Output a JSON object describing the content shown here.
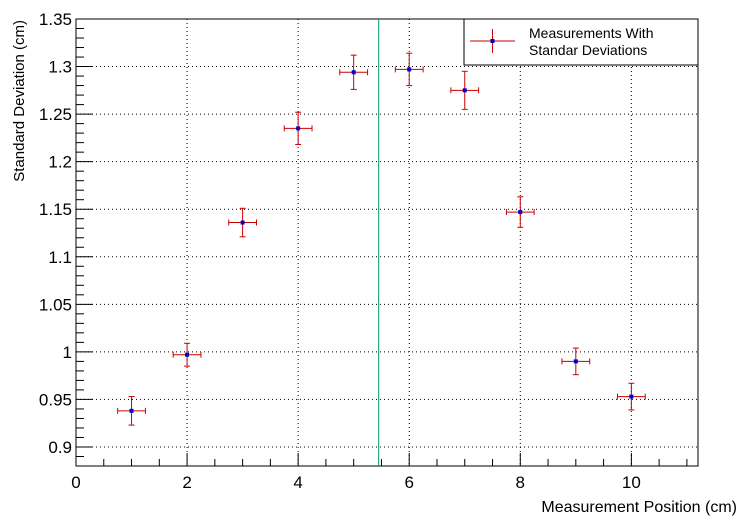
{
  "chart_data": {
    "type": "scatter",
    "title": "",
    "xlabel": "Measurement Position (cm)",
    "ylabel": "Standard Deviation (cm)",
    "xlim": [
      0,
      11.2
    ],
    "ylim": [
      0.88,
      1.35
    ],
    "x_major_ticks": [
      0,
      2,
      4,
      6,
      8,
      10
    ],
    "x_minor_step": 0.5,
    "y_major_ticks": [
      0.9,
      0.95,
      1,
      1.05,
      1.1,
      1.15,
      1.2,
      1.25,
      1.3,
      1.35
    ],
    "y_tick_labels": [
      "0.9",
      "0.95",
      "1",
      "1.05",
      "1.1",
      "1.15",
      "1.2",
      "1.25",
      "1.3",
      "1.35"
    ],
    "x_tick_labels": [
      "0",
      "2",
      "4",
      "6",
      "8",
      "10"
    ],
    "grid": true,
    "legend_position": "top-right",
    "series": [
      {
        "name": "Measurements With Standar Deviations",
        "legend_lines": [
          "Measurements With",
          "Standar Deviations"
        ],
        "marker_color": "#0000cc",
        "errorbar_color": "#cc0000",
        "points": [
          {
            "x": 1,
            "y": 0.938,
            "xerr": 0.25,
            "yerr": 0.015
          },
          {
            "x": 2,
            "y": 0.997,
            "xerr": 0.25,
            "yerr": 0.012
          },
          {
            "x": 3,
            "y": 1.136,
            "xerr": 0.25,
            "yerr": 0.015
          },
          {
            "x": 4,
            "y": 1.235,
            "xerr": 0.25,
            "yerr": 0.017
          },
          {
            "x": 5,
            "y": 1.294,
            "xerr": 0.25,
            "yerr": 0.018
          },
          {
            "x": 6,
            "y": 1.297,
            "xerr": 0.25,
            "yerr": 0.017
          },
          {
            "x": 7,
            "y": 1.275,
            "xerr": 0.25,
            "yerr": 0.02
          },
          {
            "x": 8,
            "y": 1.147,
            "xerr": 0.25,
            "yerr": 0.016
          },
          {
            "x": 9,
            "y": 0.99,
            "xerr": 0.25,
            "yerr": 0.014
          },
          {
            "x": 10,
            "y": 0.953,
            "xerr": 0.25,
            "yerr": 0.014
          }
        ]
      }
    ],
    "vertical_line": {
      "x": 5.45,
      "color": "#009966"
    }
  }
}
